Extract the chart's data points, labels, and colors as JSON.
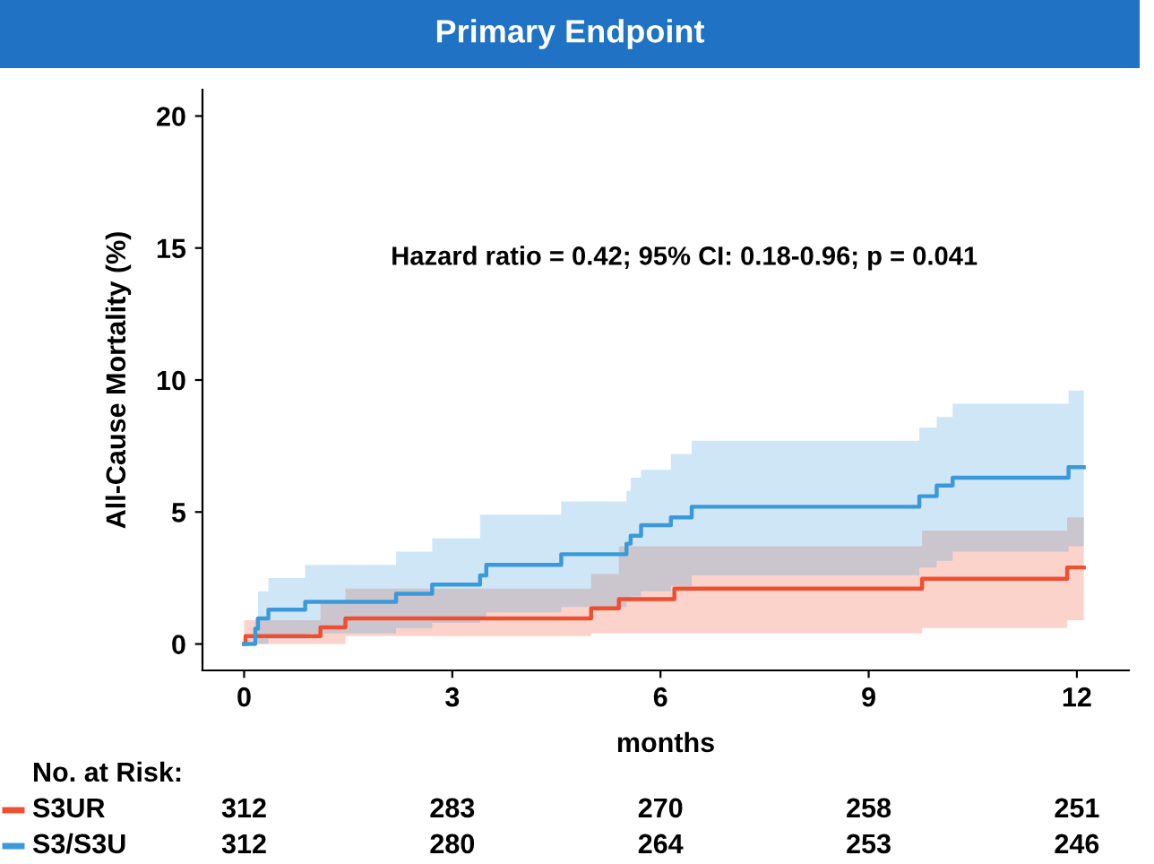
{
  "chart_data": {
    "type": "step",
    "title": "Primary Endpoint",
    "xlabel": "months",
    "ylabel": "All-Cause Mortality (%)",
    "xlim": [
      -0.6,
      12.75
    ],
    "ylim": [
      -1,
      21
    ],
    "xticks": [
      0,
      3,
      6,
      9,
      12
    ],
    "yticks": [
      0,
      5,
      10,
      15,
      20
    ],
    "grid": false,
    "legend": "bottom left",
    "series": [
      {
        "name": "S3UR",
        "color": "#f04e30",
        "x": [
          0,
          0.02,
          1.1,
          1.46,
          5.0,
          5.4,
          6.2,
          9.77,
          11.86,
          12.1
        ],
        "values": [
          0,
          0.3,
          0.63,
          0.97,
          1.35,
          1.7,
          2.1,
          2.47,
          2.9,
          2.9
        ],
        "lower": [
          0,
          0,
          0,
          0.3,
          0.4,
          0.4,
          0.4,
          0.6,
          0.9,
          0.9
        ],
        "upper": [
          0.9,
          0.9,
          1.6,
          2.1,
          2.65,
          3.7,
          3.7,
          4.3,
          4.8,
          4.8
        ]
      },
      {
        "name": "S3/S3U",
        "color": "#3a9ad9",
        "x": [
          0,
          0.16,
          0.2,
          0.35,
          0.88,
          2.19,
          2.71,
          3.4,
          3.49,
          4.57,
          5.51,
          5.57,
          5.72,
          6.15,
          6.45,
          9.73,
          9.98,
          10.21,
          11.88,
          12.1
        ],
        "values": [
          0,
          0.58,
          0.97,
          1.3,
          1.6,
          1.9,
          2.25,
          2.6,
          3.0,
          3.4,
          3.8,
          4.1,
          4.5,
          4.8,
          5.2,
          5.6,
          6.0,
          6.3,
          6.7,
          6.7
        ],
        "lower": [
          0,
          0,
          0,
          0.2,
          0.4,
          0.6,
          0.8,
          1.0,
          1.2,
          1.4,
          1.6,
          1.8,
          2.0,
          2.2,
          2.6,
          2.9,
          3.15,
          3.5,
          3.7,
          3.7
        ],
        "upper": [
          0,
          1.0,
          2.0,
          2.5,
          3.0,
          3.5,
          4.0,
          4.9,
          4.9,
          5.4,
          5.8,
          6.3,
          6.6,
          7.2,
          7.7,
          8.2,
          8.6,
          9.1,
          9.6,
          9.6
        ]
      }
    ],
    "annotations": [
      "Hazard ratio = 0.42; 95% CI: 0.18-0.96; p = 0.041",
      "No. at Risk:",
      "312",
      "283",
      "270",
      "258",
      "251",
      "312",
      "280",
      "264",
      "253",
      "246"
    ]
  }
}
